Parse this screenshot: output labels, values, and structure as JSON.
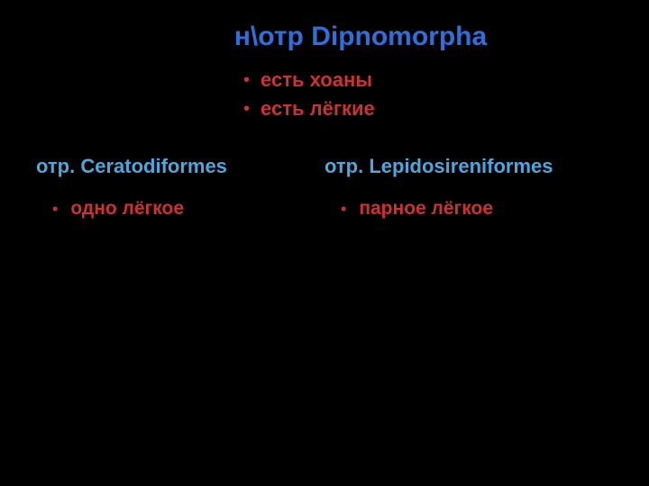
{
  "title": "н\\отр Dipnomorpha",
  "top_bullets": [
    "есть хоаны",
    "есть лёгкие"
  ],
  "columns": {
    "left": {
      "subtitle": "отр. Сeratodiformes",
      "bullet": "одно лёгкое"
    },
    "right": {
      "subtitle": "отр. Lepidosireniformes",
      "bullet": "парное лёгкое"
    }
  },
  "colors": {
    "background": "#000000",
    "title": "#2e6fdb",
    "subtitle": "#4aa8e0",
    "bullet_red": "#d03030"
  },
  "fonts": {
    "title_size": 30,
    "subtitle_size": 22,
    "bullet_size": 22,
    "sub_bullet_size": 21
  }
}
